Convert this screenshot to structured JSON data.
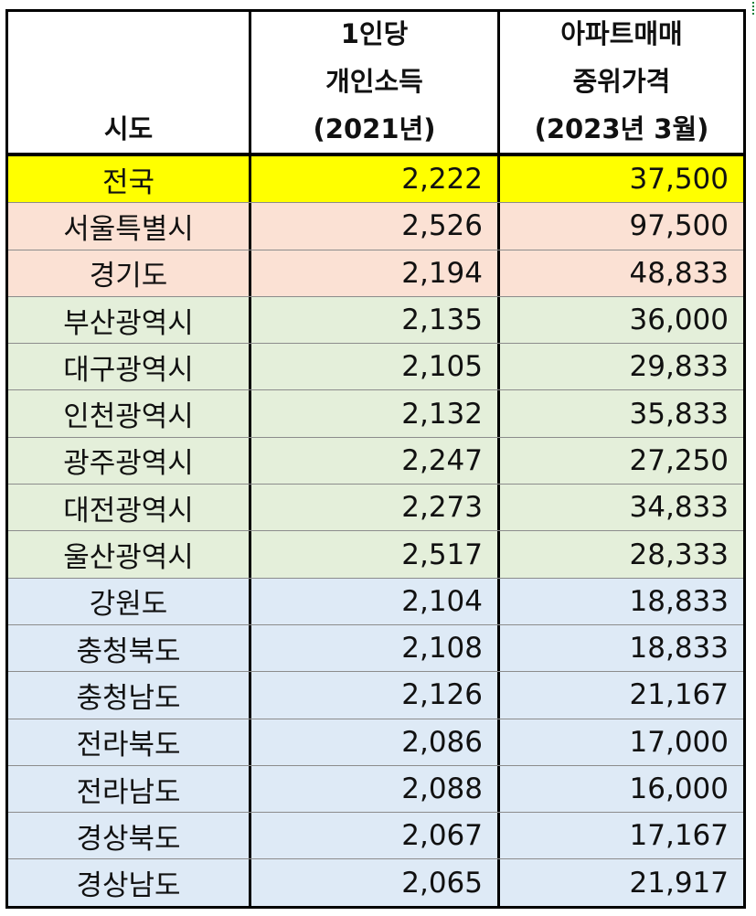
{
  "headers": {
    "col1": [
      "시도"
    ],
    "col2": [
      "1인당",
      "개인소득",
      "(2021년)"
    ],
    "col3": [
      "아파트매매",
      "중위가격",
      "(2023년 3월)"
    ]
  },
  "colors": {
    "national": "#ffff00",
    "capital": "#fbe1d4",
    "metro": "#e4efda",
    "province": "#deeaf6"
  },
  "rows": [
    {
      "region": "전국",
      "income": "2,222",
      "price": "37,500",
      "group": "national"
    },
    {
      "region": "서울특별시",
      "income": "2,526",
      "price": "97,500",
      "group": "capital"
    },
    {
      "region": "경기도",
      "income": "2,194",
      "price": "48,833",
      "group": "capital"
    },
    {
      "region": "부산광역시",
      "income": "2,135",
      "price": "36,000",
      "group": "metro"
    },
    {
      "region": "대구광역시",
      "income": "2,105",
      "price": "29,833",
      "group": "metro"
    },
    {
      "region": "인천광역시",
      "income": "2,132",
      "price": "35,833",
      "group": "metro"
    },
    {
      "region": "광주광역시",
      "income": "2,247",
      "price": "27,250",
      "group": "metro"
    },
    {
      "region": "대전광역시",
      "income": "2,273",
      "price": "34,833",
      "group": "metro"
    },
    {
      "region": "울산광역시",
      "income": "2,517",
      "price": "28,333",
      "group": "metro"
    },
    {
      "region": "강원도",
      "income": "2,104",
      "price": "18,833",
      "group": "province"
    },
    {
      "region": "충청북도",
      "income": "2,108",
      "price": "18,833",
      "group": "province"
    },
    {
      "region": "충청남도",
      "income": "2,126",
      "price": "21,167",
      "group": "province"
    },
    {
      "region": "전라북도",
      "income": "2,086",
      "price": "17,000",
      "group": "province"
    },
    {
      "region": "전라남도",
      "income": "2,088",
      "price": "16,000",
      "group": "province"
    },
    {
      "region": "경상북도",
      "income": "2,067",
      "price": "17,167",
      "group": "province"
    },
    {
      "region": "경상남도",
      "income": "2,065",
      "price": "21,917",
      "group": "province"
    }
  ]
}
